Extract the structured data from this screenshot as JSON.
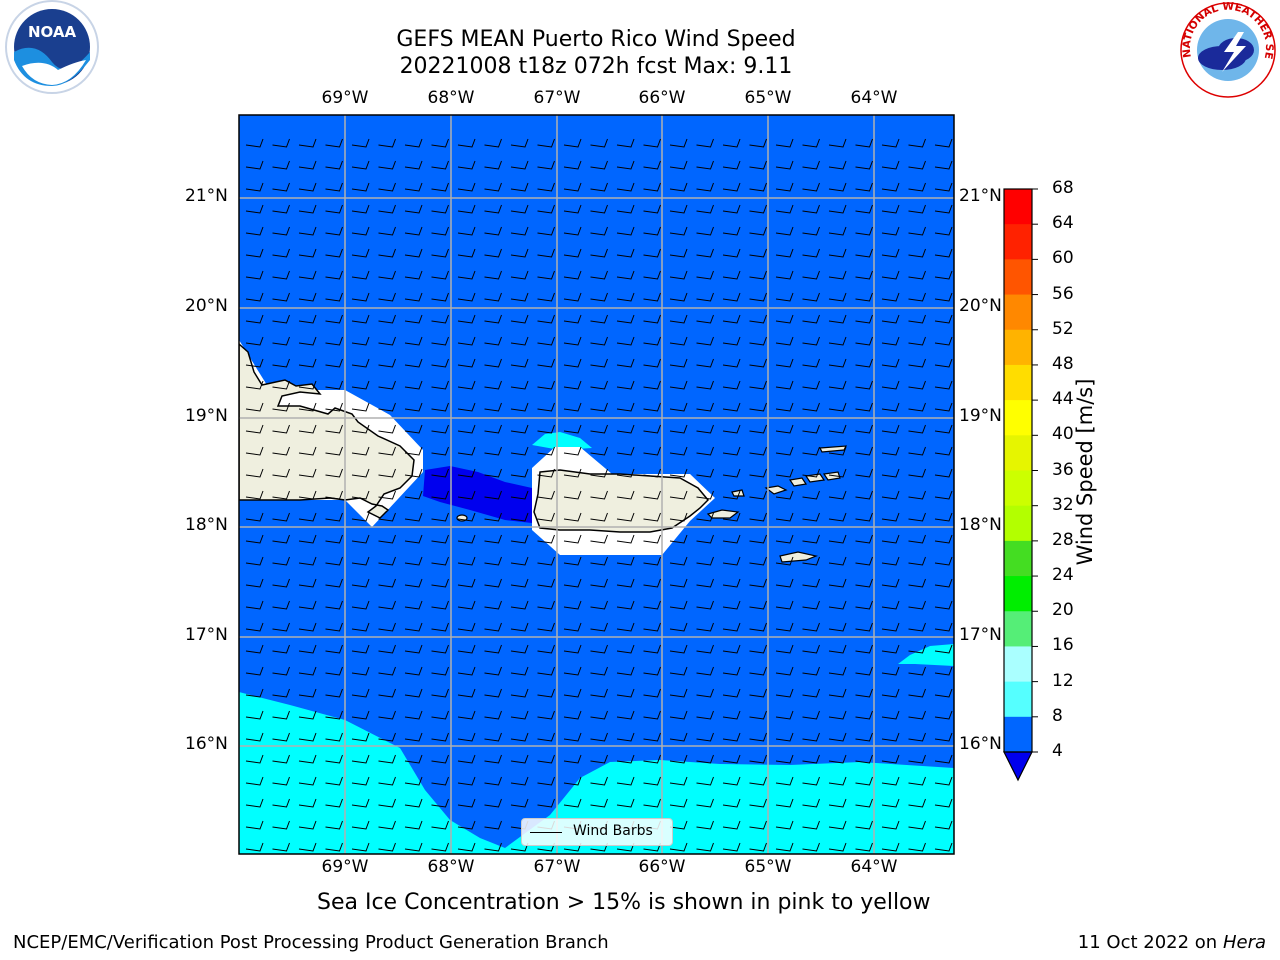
{
  "title": {
    "line1": "GEFS MEAN Puerto Rico Wind Speed",
    "line2": "20221008 t18z 072h fcst   Max: 9.11"
  },
  "axes": {
    "lon_labels": [
      "69°W",
      "68°W",
      "67°W",
      "66°W",
      "65°W",
      "64°W"
    ],
    "lat_labels": [
      "21°N",
      "20°N",
      "19°N",
      "18°N",
      "17°N",
      "16°N"
    ]
  },
  "colorbar": {
    "label": "Wind Speed [m/s]",
    "ticks": [
      "68",
      "64",
      "60",
      "56",
      "52",
      "48",
      "44",
      "40",
      "36",
      "32",
      "28",
      "24",
      "20",
      "16",
      "12",
      "8",
      "4"
    ],
    "colors": [
      "#ff0000",
      "#ff2200",
      "#ff5500",
      "#ff8800",
      "#ffb300",
      "#ffdd00",
      "#ffff00",
      "#e6f500",
      "#ccff00",
      "#b3ff00",
      "#44dd22",
      "#00ee00",
      "#55ee77",
      "#aaffff",
      "#55ffff",
      "#00ffff",
      "#0066ff"
    ],
    "extend_color": "#0000ee"
  },
  "legend": {
    "label": "Wind Barbs"
  },
  "caption": "Sea Ice Concentration > 15% is shown in pink to yellow",
  "footer": {
    "left": "NCEP/EMC/Verification Post Processing Product Generation Branch",
    "right_date": "11 Oct 2022 on ",
    "right_host": "Hera"
  },
  "logos": {
    "noaa": "NOAA",
    "nws": "NATIONAL WEATHER SERVICE"
  },
  "colors": {
    "ocean_base": "#0066ff",
    "band_8_12": "#00ffff",
    "band_12_16": "#55ffff",
    "low_wind": "#0000ee",
    "land": "#efefdf"
  }
}
